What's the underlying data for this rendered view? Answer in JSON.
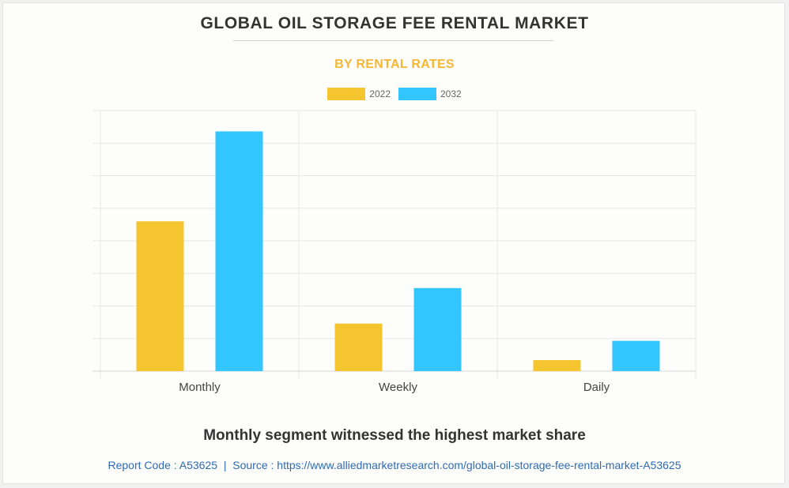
{
  "chart_data": {
    "type": "bar",
    "title": "GLOBAL OIL STORAGE FEE RENTAL MARKET",
    "subtitle": "BY RENTAL RATES",
    "categories": [
      "Monthly",
      "Weekly",
      "Daily"
    ],
    "series": [
      {
        "name": "2022",
        "color": "#f4c52e",
        "values": [
          46,
          14.6,
          3.4
        ]
      },
      {
        "name": "2032",
        "color": "#33c5fd",
        "values": [
          73.6,
          25.5,
          9.3
        ]
      }
    ],
    "ylim": [
      0,
      80
    ],
    "ytick_count": 8,
    "grid": true,
    "legend": "top-center",
    "xlabel": "",
    "ylabel": ""
  },
  "footer": {
    "headline": "Monthly segment witnessed the highest market share",
    "report_code": "Report Code : A53625",
    "separator": "|",
    "source": "Source : https://www.alliedmarketresearch.com/global-oil-storage-fee-rental-market-A53625"
  }
}
